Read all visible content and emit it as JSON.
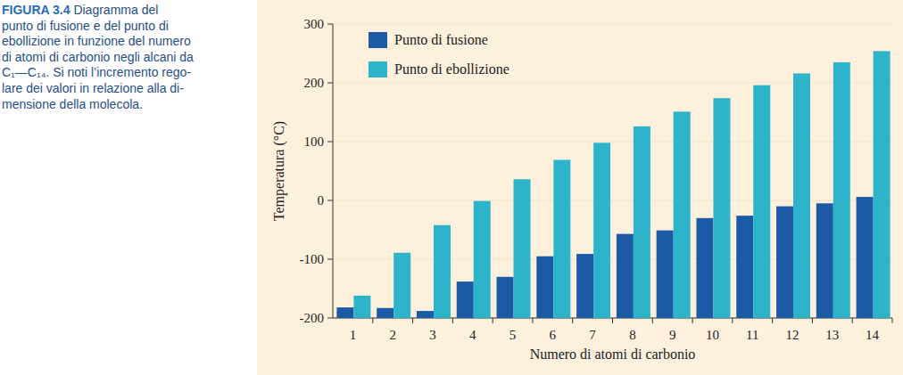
{
  "chart_data": {
    "type": "bar",
    "x_label": "Numero di atomi di carbonio",
    "y_label": "Temperatura (°C)",
    "categories": [
      "1",
      "2",
      "3",
      "4",
      "5",
      "6",
      "7",
      "8",
      "9",
      "10",
      "11",
      "12",
      "13",
      "14"
    ],
    "series": [
      {
        "name": "Punto di fusione",
        "color": "#1d5aa6",
        "values": [
          -182,
          -183,
          -188,
          -138,
          -130,
          -95,
          -91,
          -57,
          -51,
          -30,
          -26,
          -10,
          -5,
          6
        ]
      },
      {
        "name": "Punto di ebollizione",
        "color": "#2db4cb",
        "values": [
          -162,
          -89,
          -42,
          -1,
          36,
          69,
          98,
          126,
          151,
          174,
          196,
          216,
          235,
          254
        ]
      }
    ],
    "ylim": [
      -200,
      300
    ],
    "yticks": [
      -200,
      -100,
      0,
      100,
      200,
      300
    ],
    "grid": true,
    "legend": "upper left"
  },
  "caption": {
    "label": "FIGURA 3.4",
    "lines": [
      "Diagramma del",
      "punto di fusione e del punto di",
      "ebollizione in funzione del numero",
      "di atomi di carbonio negli alcani da",
      "C₁—C₁₄. Si noti l’incremento rego-",
      "lare dei valori in relazione alla di-",
      "mensione della molecola."
    ]
  }
}
